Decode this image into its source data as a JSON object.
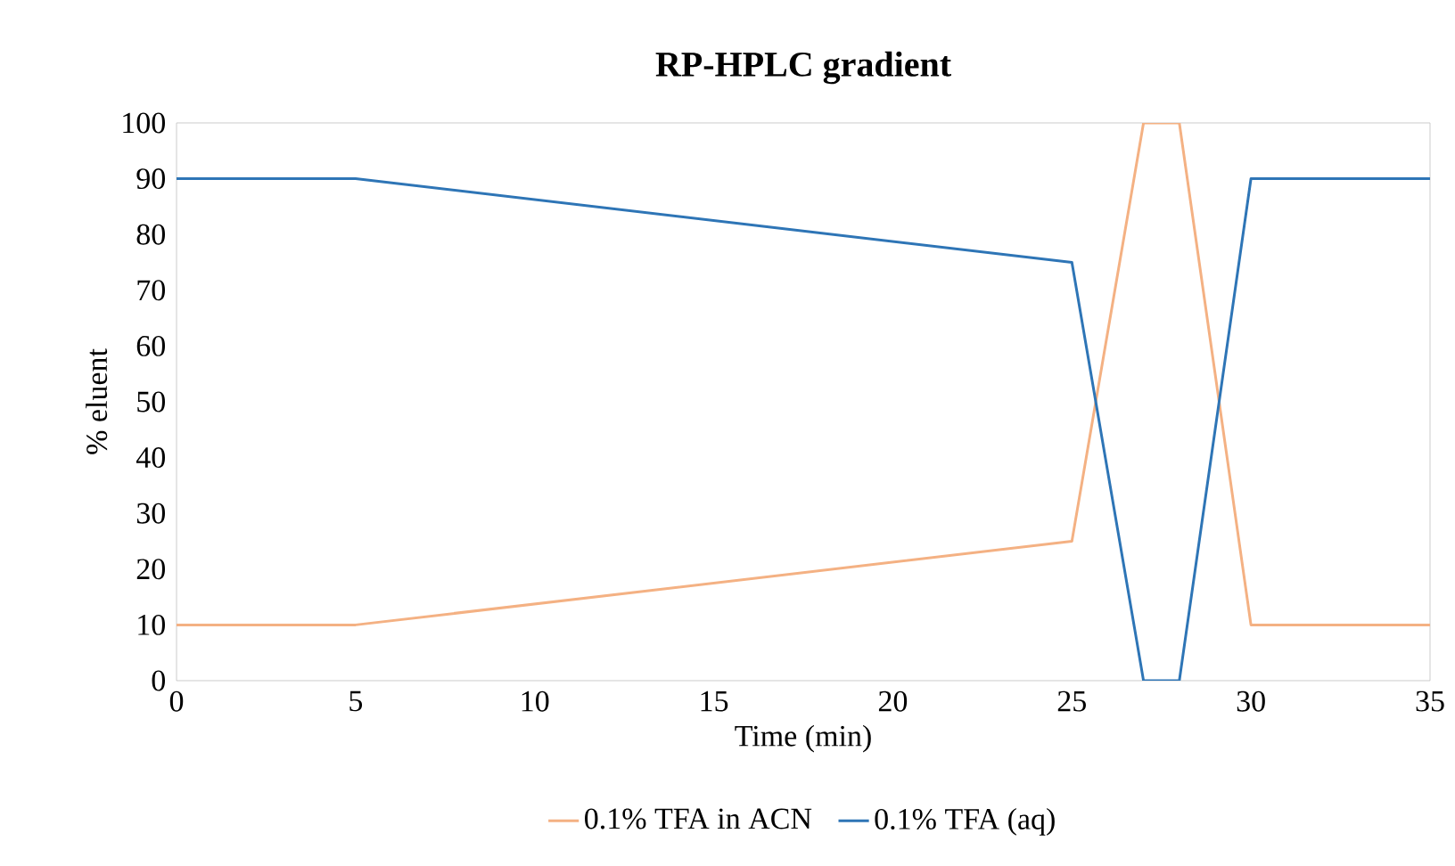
{
  "chart_data": {
    "type": "line",
    "title": "RP-HPLC gradient",
    "xlabel": "Time (min)",
    "ylabel": "% eluent",
    "x": [
      0,
      5,
      25,
      27,
      28,
      30,
      35
    ],
    "series": [
      {
        "name": "0.1% TFA in ACN",
        "color": "#f4b183",
        "values": [
          10,
          10,
          25,
          100,
          100,
          10,
          10
        ]
      },
      {
        "name": "0.1% TFA (aq)",
        "color": "#2e75b6",
        "values": [
          90,
          90,
          75,
          0,
          0,
          90,
          90
        ]
      }
    ],
    "xlim": [
      0,
      35
    ],
    "ylim": [
      0,
      100
    ],
    "xticks": [
      0,
      5,
      10,
      15,
      20,
      25,
      30,
      35
    ],
    "yticks": [
      0,
      10,
      20,
      30,
      40,
      50,
      60,
      70,
      80,
      90,
      100
    ],
    "legend": "bottom",
    "marker": "none",
    "line_style": "solid",
    "grid": false
  }
}
